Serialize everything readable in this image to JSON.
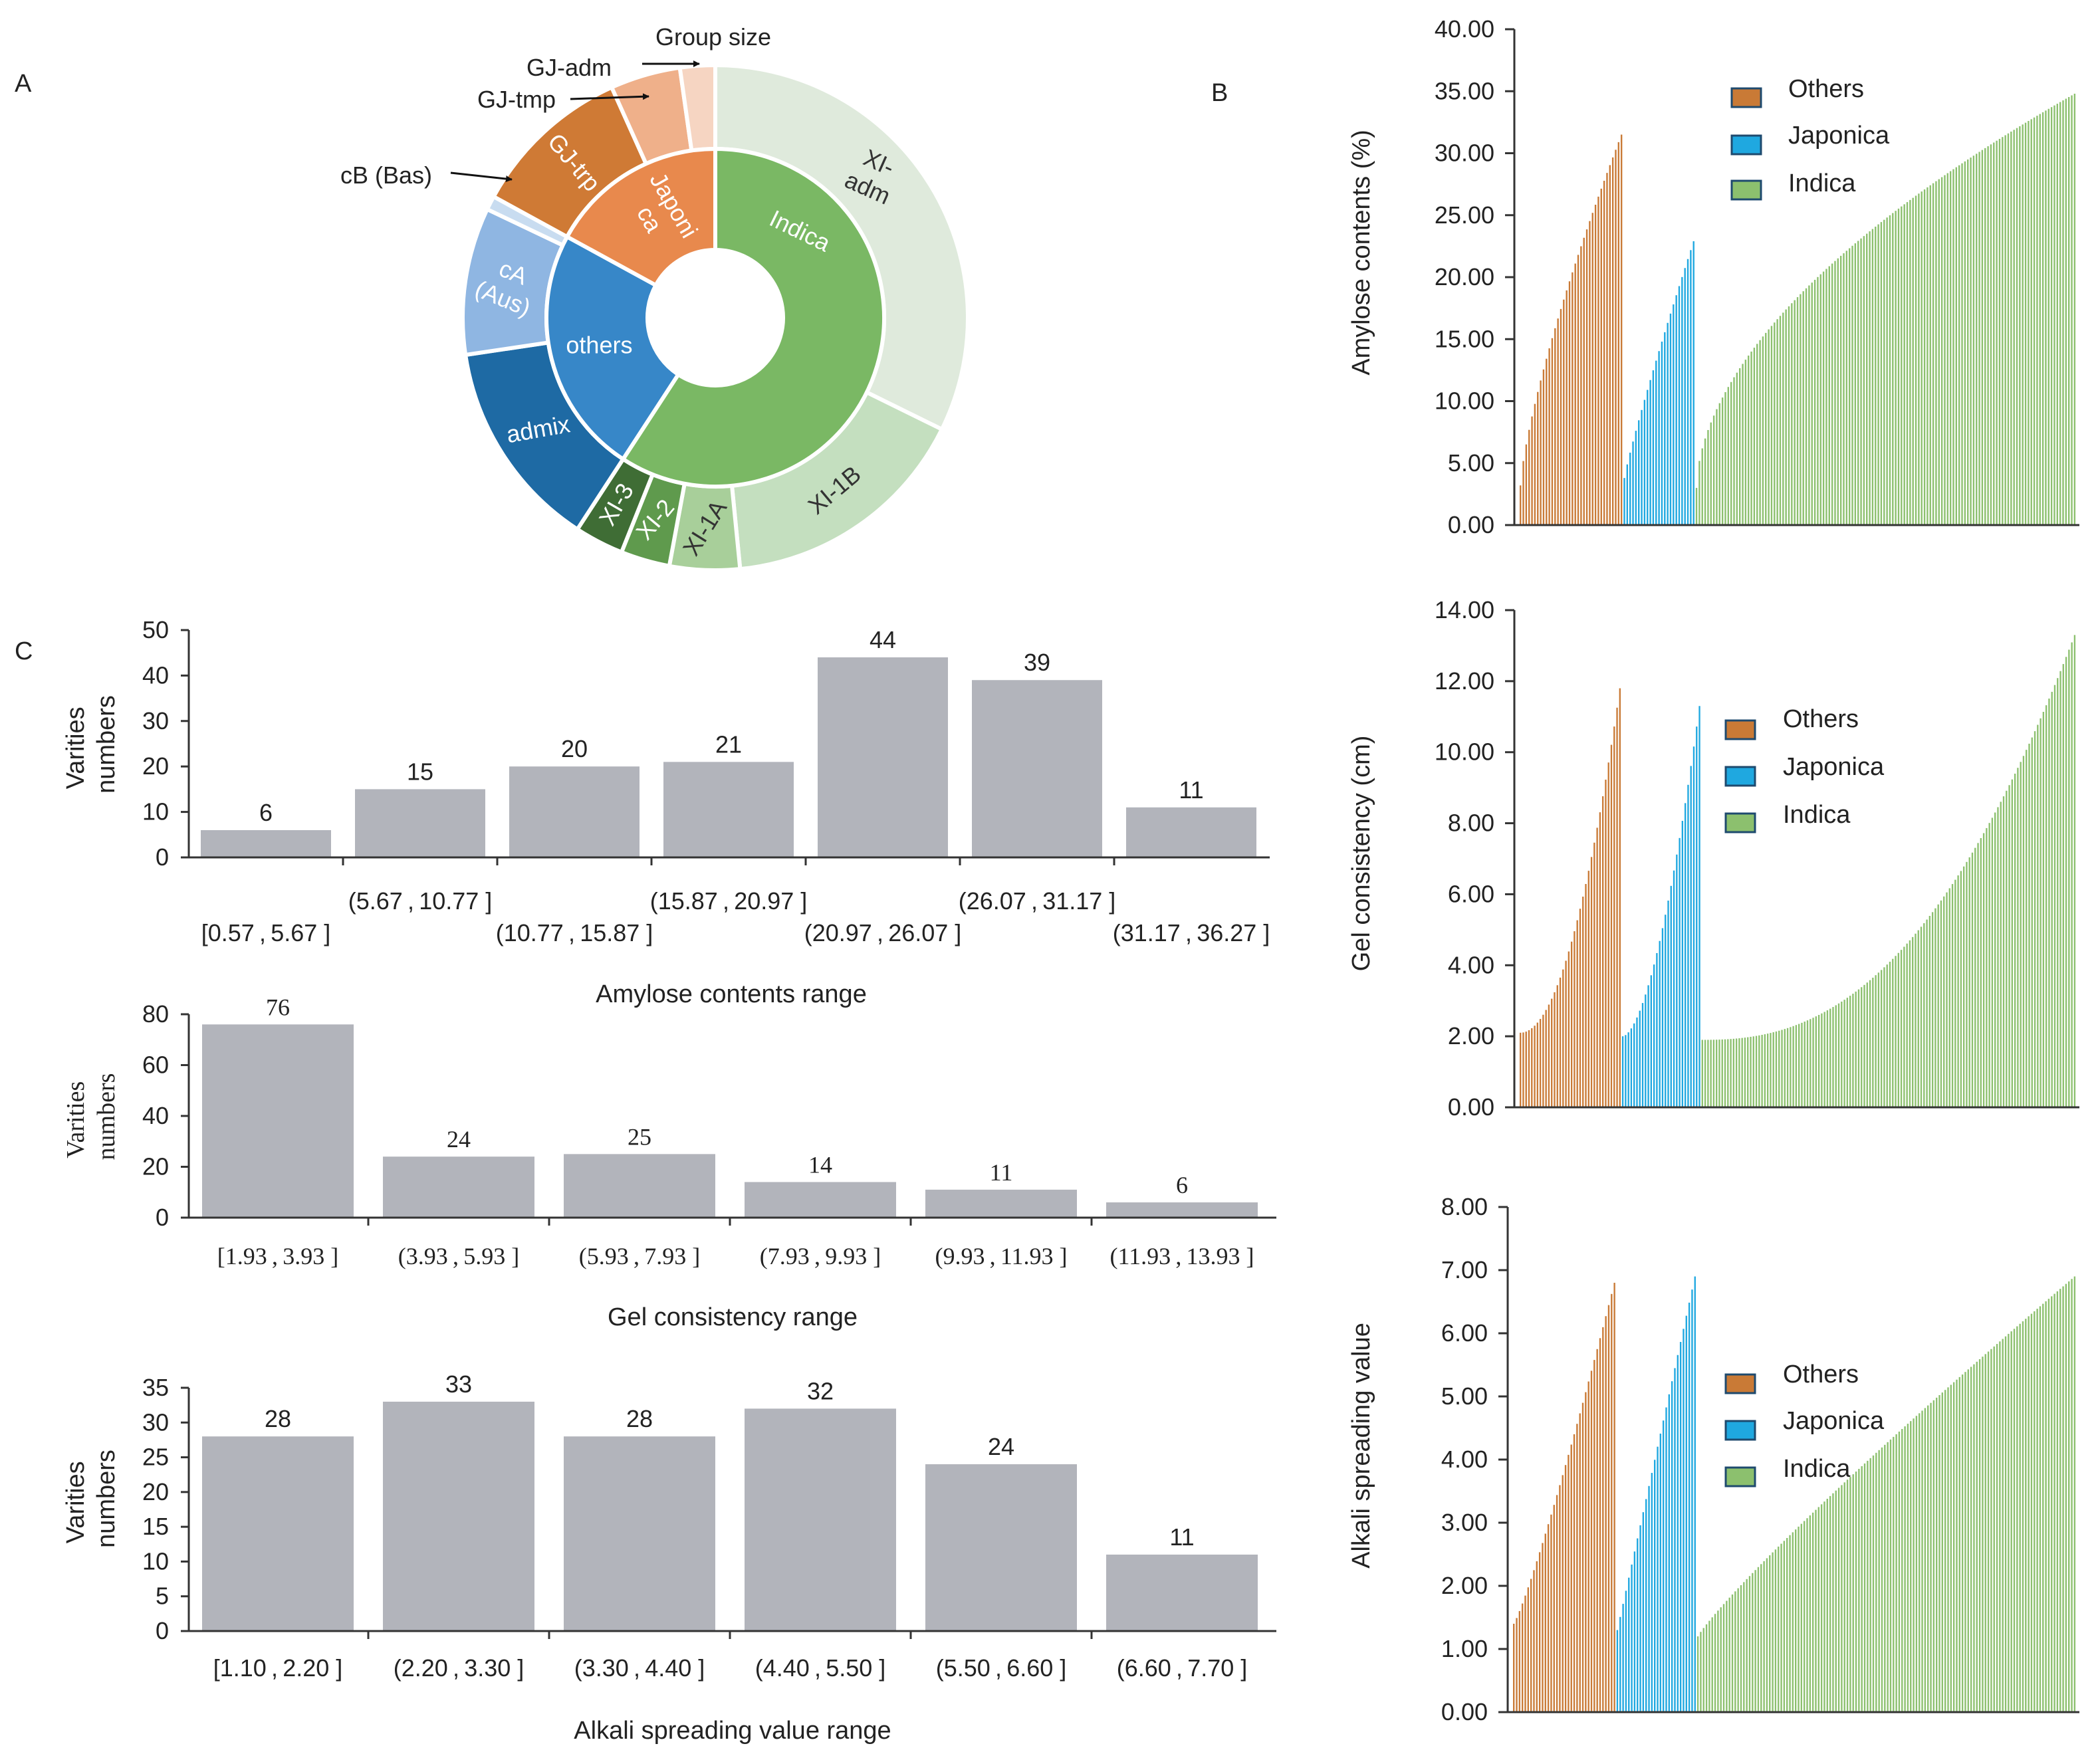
{
  "panels": {
    "a": "A",
    "b": "B",
    "c": "C"
  },
  "sunburst": {
    "inner": [
      {
        "label": "Indica",
        "value": 132,
        "color": "#7ab864",
        "text_color": "#ffffff"
      },
      {
        "label": "others",
        "value": 53,
        "color": "#3787c8",
        "text_color": "#ffffff"
      },
      {
        "label": "Japonica",
        "value": 38,
        "color": "#e8894d",
        "text_color": "#ffffff"
      }
    ],
    "outer": [
      {
        "label": "XI-adm",
        "value": 72,
        "color": "#dfeadc",
        "text_color": "#333333",
        "parent": "Indica"
      },
      {
        "label": "XI-1B",
        "value": 36,
        "color": "#c4dfbf",
        "text_color": "#333333",
        "parent": "Indica"
      },
      {
        "label": "XI-1A",
        "value": 10,
        "color": "#a8cf9a",
        "text_color": "#333333",
        "parent": "Indica"
      },
      {
        "label": "XI-2",
        "value": 7,
        "color": "#5f9a4d",
        "text_color": "#ffffff",
        "parent": "Indica"
      },
      {
        "label": "XI-3",
        "value": 7,
        "color": "#3f6d35",
        "text_color": "#ffffff",
        "parent": "Indica"
      },
      {
        "label": "admix",
        "value": 30,
        "color": "#1e6aa4",
        "text_color": "#ffffff",
        "parent": "others"
      },
      {
        "label": "cA (Aus)",
        "value": 21,
        "color": "#8fb6e2",
        "text_color": "#ffffff",
        "parent": "others"
      },
      {
        "label": "cB (Bas)",
        "value": 2,
        "color": "#c8dcf0",
        "text_color": "#ffffff",
        "parent": "others"
      },
      {
        "label": "GJ-trp",
        "value": 23,
        "color": "#cf7a35",
        "text_color": "#ffffff",
        "parent": "Japonica"
      },
      {
        "label": "GJ-tmp",
        "value": 10,
        "color": "#efb08a",
        "text_color": "#ffffff",
        "parent": "Japonica"
      },
      {
        "label": "GJ-adm",
        "value": 5,
        "color": "#f6d5c2",
        "text_color": "#ffffff",
        "parent": "Japonica"
      }
    ],
    "annotations": {
      "group_size": "Group size",
      "gj_adm": "GJ-adm",
      "gj_tmp": "GJ-tmp",
      "cb_bas": "cB (Bas)"
    }
  },
  "legend": {
    "others": "Others",
    "japonica": "Japonica",
    "indica": "Indica"
  },
  "series_colors": {
    "others": "#c97a36",
    "japonica": "#1fa8e0",
    "indica": "#8cc06e"
  },
  "chart_data": [
    {
      "id": "amylose-bars",
      "type": "bar",
      "title": "",
      "ylabel": "Amylose contents (%)",
      "xlabel": "",
      "ylim": [
        0,
        40
      ],
      "yticks": [
        "0.00",
        "5.00",
        "10.00",
        "15.00",
        "20.00",
        "25.00",
        "30.00",
        "35.00",
        "40.00"
      ],
      "legend": "right",
      "series": [
        {
          "name": "Others",
          "count": 36,
          "min": 3.2,
          "max": 31.5,
          "curve": 0.75
        },
        {
          "name": "Japonica",
          "count": 25,
          "min": 3.8,
          "max": 22.9,
          "curve": 0.9
        },
        {
          "name": "Indica",
          "count": 132,
          "min": 3.0,
          "max": 34.8,
          "curve": 0.55
        }
      ]
    },
    {
      "id": "gel-bars",
      "type": "bar",
      "title": "",
      "ylabel": "Gel consistency (cm)",
      "xlabel": "",
      "ylim": [
        0,
        14
      ],
      "yticks": [
        "0.00",
        "2.00",
        "4.00",
        "6.00",
        "8.00",
        "10.00",
        "12.00",
        "14.00"
      ],
      "legend": "right",
      "series": [
        {
          "name": "Others",
          "count": 36,
          "min": 2.1,
          "max": 11.8,
          "curve": 2.0
        },
        {
          "name": "Japonica",
          "count": 28,
          "min": 2.0,
          "max": 11.3,
          "curve": 1.7
        },
        {
          "name": "Indica",
          "count": 132,
          "min": 1.9,
          "max": 13.3,
          "curve": 2.4
        }
      ]
    },
    {
      "id": "alkali-bars",
      "type": "bar",
      "title": "",
      "ylabel": "Alkali spreading value",
      "xlabel": "",
      "ylim": [
        0,
        8
      ],
      "yticks": [
        "0.00",
        "1.00",
        "2.00",
        "3.00",
        "4.00",
        "5.00",
        "6.00",
        "7.00",
        "8.00"
      ],
      "legend": "right",
      "series": [
        {
          "name": "Others",
          "count": 36,
          "min": 1.4,
          "max": 6.8,
          "curve": 1.15
        },
        {
          "name": "Japonica",
          "count": 28,
          "min": 1.3,
          "max": 6.9,
          "curve": 1.0
        },
        {
          "name": "Indica",
          "count": 132,
          "min": 1.2,
          "max": 6.9,
          "curve": 0.9
        }
      ]
    },
    {
      "id": "amylose-hist",
      "type": "bar",
      "title": "",
      "ylabel": "Varities numbers",
      "xlabel": "Amylose contents  range",
      "ylim": [
        0,
        50
      ],
      "yticks": [
        "0",
        "10",
        "20",
        "30",
        "40",
        "50"
      ],
      "categories": [
        "[0.57 , 5.67 ]",
        "(5.67 , 10.77 ]",
        "(10.77 , 15.87 ]",
        "(15.87 , 20.97 ]",
        "(20.97 , 26.07 ]",
        "(26.07 , 31.17 ]",
        "(31.17 , 36.27 ]"
      ],
      "values": [
        6,
        15,
        20,
        21,
        44,
        39,
        11
      ],
      "value_labels": [
        "6",
        "15",
        "20",
        "21",
        "44",
        "39",
        "11"
      ]
    },
    {
      "id": "gel-hist",
      "type": "bar",
      "title": "",
      "ylabel": "Varities numbers",
      "xlabel": "Gel consistency range",
      "ylim": [
        0,
        80
      ],
      "yticks": [
        "0",
        "20",
        "40",
        "60",
        "80"
      ],
      "categories": [
        "[1.93 , 3.93 ]",
        "(3.93 , 5.93 ]",
        "(5.93 , 7.93 ]",
        "(7.93 , 9.93 ]",
        "(9.93 , 11.93 ]",
        "(11.93 , 13.93 ]"
      ],
      "values": [
        76,
        24,
        25,
        14,
        11,
        6
      ],
      "value_labels": [
        "76",
        "24",
        "25",
        "14",
        "11",
        "6"
      ]
    },
    {
      "id": "alkali-hist",
      "type": "bar",
      "title": "",
      "ylabel": "Varities numbers",
      "xlabel": "Alkali spreading value range",
      "ylim": [
        0,
        35
      ],
      "yticks": [
        "0",
        "5",
        "10",
        "15",
        "20",
        "25",
        "30",
        "35"
      ],
      "categories": [
        "[1.10 , 2.20 ]",
        "(2.20 , 3.30 ]",
        "(3.30 , 4.40 ]",
        "(4.40 , 5.50 ]",
        "(5.50 , 6.60 ]",
        "(6.60 , 7.70 ]"
      ],
      "values": [
        28,
        33,
        28,
        32,
        24,
        11
      ],
      "value_labels": [
        "28",
        "33",
        "28",
        "32",
        "24",
        "11"
      ]
    }
  ]
}
